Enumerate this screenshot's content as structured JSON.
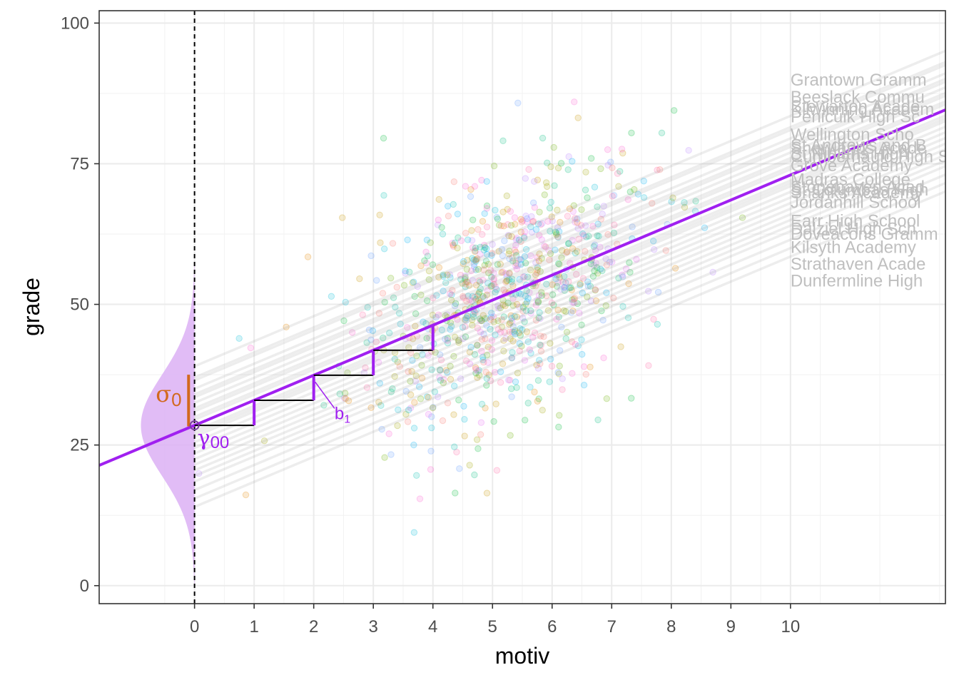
{
  "chart_data": {
    "type": "scatter",
    "xlabel": "motiv",
    "ylabel": "grade",
    "xlim": [
      -1.6,
      12.6
    ],
    "ylim": [
      -3.2,
      102.2
    ],
    "x_ticks": [
      "0",
      "1",
      "2",
      "3",
      "4",
      "5",
      "6",
      "7",
      "8",
      "9",
      "10"
    ],
    "y_ticks": [
      "0",
      "25",
      "50",
      "75",
      "100"
    ],
    "fixed_line": {
      "intercept": 28.5,
      "slope": 4.45,
      "color": "#a020f0"
    },
    "annotations": {
      "sigma": "σ",
      "sigma_sub": "0",
      "gamma": "γ",
      "gamma_sub": "00",
      "b": "b",
      "b_sub": "1"
    },
    "colors": {
      "fixed": "#a020f0",
      "density_fill": "#dcb0f5",
      "sigma": "#d2691e",
      "school_lines": "#9a9a9a",
      "school_labels": "#bfbfbf"
    },
    "school_intercepts": [
      39,
      37,
      36.5,
      35,
      34,
      33.5,
      32.5,
      31.5,
      31,
      30,
      29.5,
      28.5,
      27.5,
      27,
      26.5,
      25.5,
      24.5,
      23.5,
      22.5,
      21.5,
      20.5,
      19.5,
      18.5,
      17,
      15.5,
      14
    ],
    "school_labels": [
      {
        "text": "Grantown Gramm",
        "y": 90
      },
      {
        "text": "Beeslack Commu",
        "y": 87
      },
      {
        "text": "Stewarton Acade",
        "y": 85.3
      },
      {
        "text": "Kilwinning Academ",
        "y": 84.8
      },
      {
        "text": "Penicuik High Sc",
        "y": 83.5
      },
      {
        "text": "Wellington Scho",
        "y": 80.3
      },
      {
        "text": "St Andrews and B",
        "y": 78.4
      },
      {
        "text": "Shawlands Acade",
        "y": 77.9
      },
      {
        "text": "St Ninians High",
        "y": 76.9
      },
      {
        "text": "Cumbernauld High S",
        "y": 76.4
      },
      {
        "text": "Grove Academy",
        "y": 74.8
      },
      {
        "text": "Madras College",
        "y": 72.3
      },
      {
        "text": "Stonehaven Acad",
        "y": 71.0
      },
      {
        "text": "St Columbas High",
        "y": 70.5
      },
      {
        "text": "Shanks Academy",
        "y": 70.0
      },
      {
        "text": "Jordanhill School",
        "y": 68.3
      },
      {
        "text": "Earr High School",
        "y": 65.0
      },
      {
        "text": "Dalziel High Sch",
        "y": 63.6
      },
      {
        "text": "Doveacons Gramm",
        "y": 62.6
      },
      {
        "text": "Kilsyth Academy",
        "y": 60.3
      },
      {
        "text": "Strathaven Acade",
        "y": 57.3
      },
      {
        "text": "Dunfermline High",
        "y": 54.3
      }
    ]
  }
}
